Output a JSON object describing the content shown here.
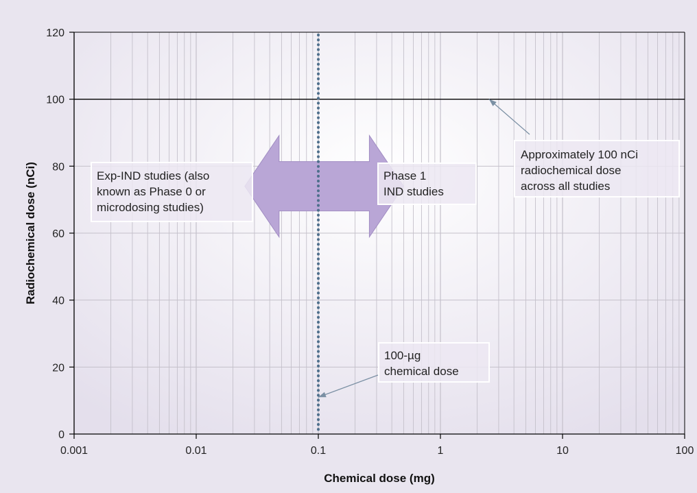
{
  "chart_data": {
    "type": "line",
    "title": "",
    "xlabel": "Chemical dose (mg)",
    "ylabel": "Radiochemical dose (nCi)",
    "x_scale": "log",
    "xlim": [
      0.001,
      100
    ],
    "ylim": [
      0,
      120
    ],
    "x_ticks": [
      "0.001",
      "0.01",
      "0.1",
      "1",
      "10",
      "100"
    ],
    "x_tick_values": [
      0.001,
      0.01,
      0.1,
      1,
      10,
      100
    ],
    "y_ticks": [
      "0",
      "20",
      "40",
      "60",
      "80",
      "100",
      "120"
    ],
    "y_tick_values": [
      0,
      20,
      40,
      60,
      80,
      100,
      120
    ],
    "grid": true,
    "reference_lines": [
      {
        "orientation": "horizontal",
        "y": 100,
        "style": "solid",
        "color": "#000000"
      },
      {
        "orientation": "vertical",
        "x": 0.1,
        "style": "dotted",
        "color": "#4e6f8c"
      }
    ],
    "annotations": [
      {
        "id": "exp-ind",
        "lines": [
          "Exp-IND studies (also",
          "known as Phase 0 or",
          "microdosing studies)"
        ]
      },
      {
        "id": "phase1",
        "lines": [
          "Phase 1",
          "IND studies"
        ]
      },
      {
        "id": "rad-dose",
        "lines": [
          "Approximately 100 nCi",
          "radiochemical dose",
          "across all studies"
        ],
        "points_to": {
          "x": 2.5,
          "y": 100
        }
      },
      {
        "id": "chem-dose",
        "lines": [
          "100-µg",
          "chemical dose"
        ],
        "points_to": {
          "x": 0.1,
          "y": 11
        }
      }
    ],
    "double_arrow": {
      "x_from": 0.025,
      "x_to": 0.5,
      "y_center": 74,
      "color": "#b9a6d6"
    }
  },
  "colors": {
    "panel": "#f4f2f6",
    "grid": "#c4c0ca",
    "arrow_fill": "#b9a6d6",
    "dotted_line": "#4e6f8c",
    "pointer": "#7a8fa3"
  }
}
